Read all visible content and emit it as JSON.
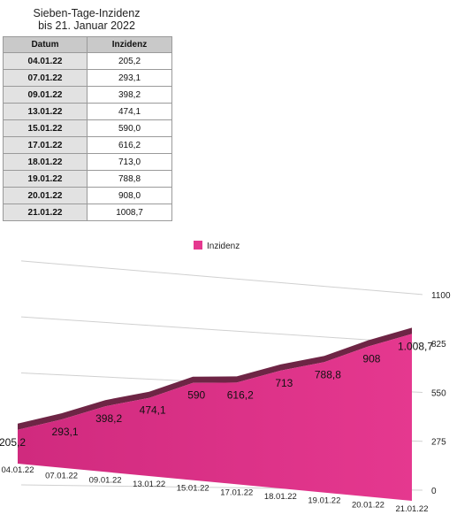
{
  "title_lines": [
    "Sieben-Tage-Inzidenz",
    "bis 21. Januar 2022"
  ],
  "table": {
    "headers": [
      "Datum",
      "Inzidenz"
    ],
    "rows": [
      {
        "date": "04.01.22",
        "value": "205,2"
      },
      {
        "date": "07.01.22",
        "value": "293,1"
      },
      {
        "date": "09.01.22",
        "value": "398,2"
      },
      {
        "date": "13.01.22",
        "value": "474,1"
      },
      {
        "date": "15.01.22",
        "value": "590,0"
      },
      {
        "date": "17.01.22",
        "value": "616,2"
      },
      {
        "date": "18.01.22",
        "value": "713,0"
      },
      {
        "date": "19.01.22",
        "value": "788,8"
      },
      {
        "date": "20.01.22",
        "value": "908,0"
      },
      {
        "date": "21.01.22",
        "value": "1008,7"
      }
    ]
  },
  "chart_data": {
    "type": "area",
    "categories": [
      "04.01.22",
      "07.01.22",
      "09.01.22",
      "13.01.22",
      "15.01.22",
      "17.01.22",
      "18.01.22",
      "19.01.22",
      "20.01.22",
      "21.01.22"
    ],
    "series": [
      {
        "name": "Inzidenz",
        "values": [
          205.2,
          293.1,
          398.2,
          474.1,
          590.0,
          616.2,
          713.0,
          788.8,
          908.0,
          1008.7
        ],
        "labels": [
          "205,2",
          "293,1",
          "398,2",
          "474,1",
          "590",
          "616,2",
          "713",
          "788,8",
          "908",
          "1.008,7"
        ]
      }
    ],
    "yticks": [
      "0",
      "275",
      "550",
      "825",
      "1100"
    ],
    "ylim": [
      0,
      1100
    ],
    "legend_position": "top-center",
    "grid": true,
    "colors": {
      "fill": "#e5388f",
      "top": "#6e2545",
      "grid": "#d0d0d0"
    }
  }
}
